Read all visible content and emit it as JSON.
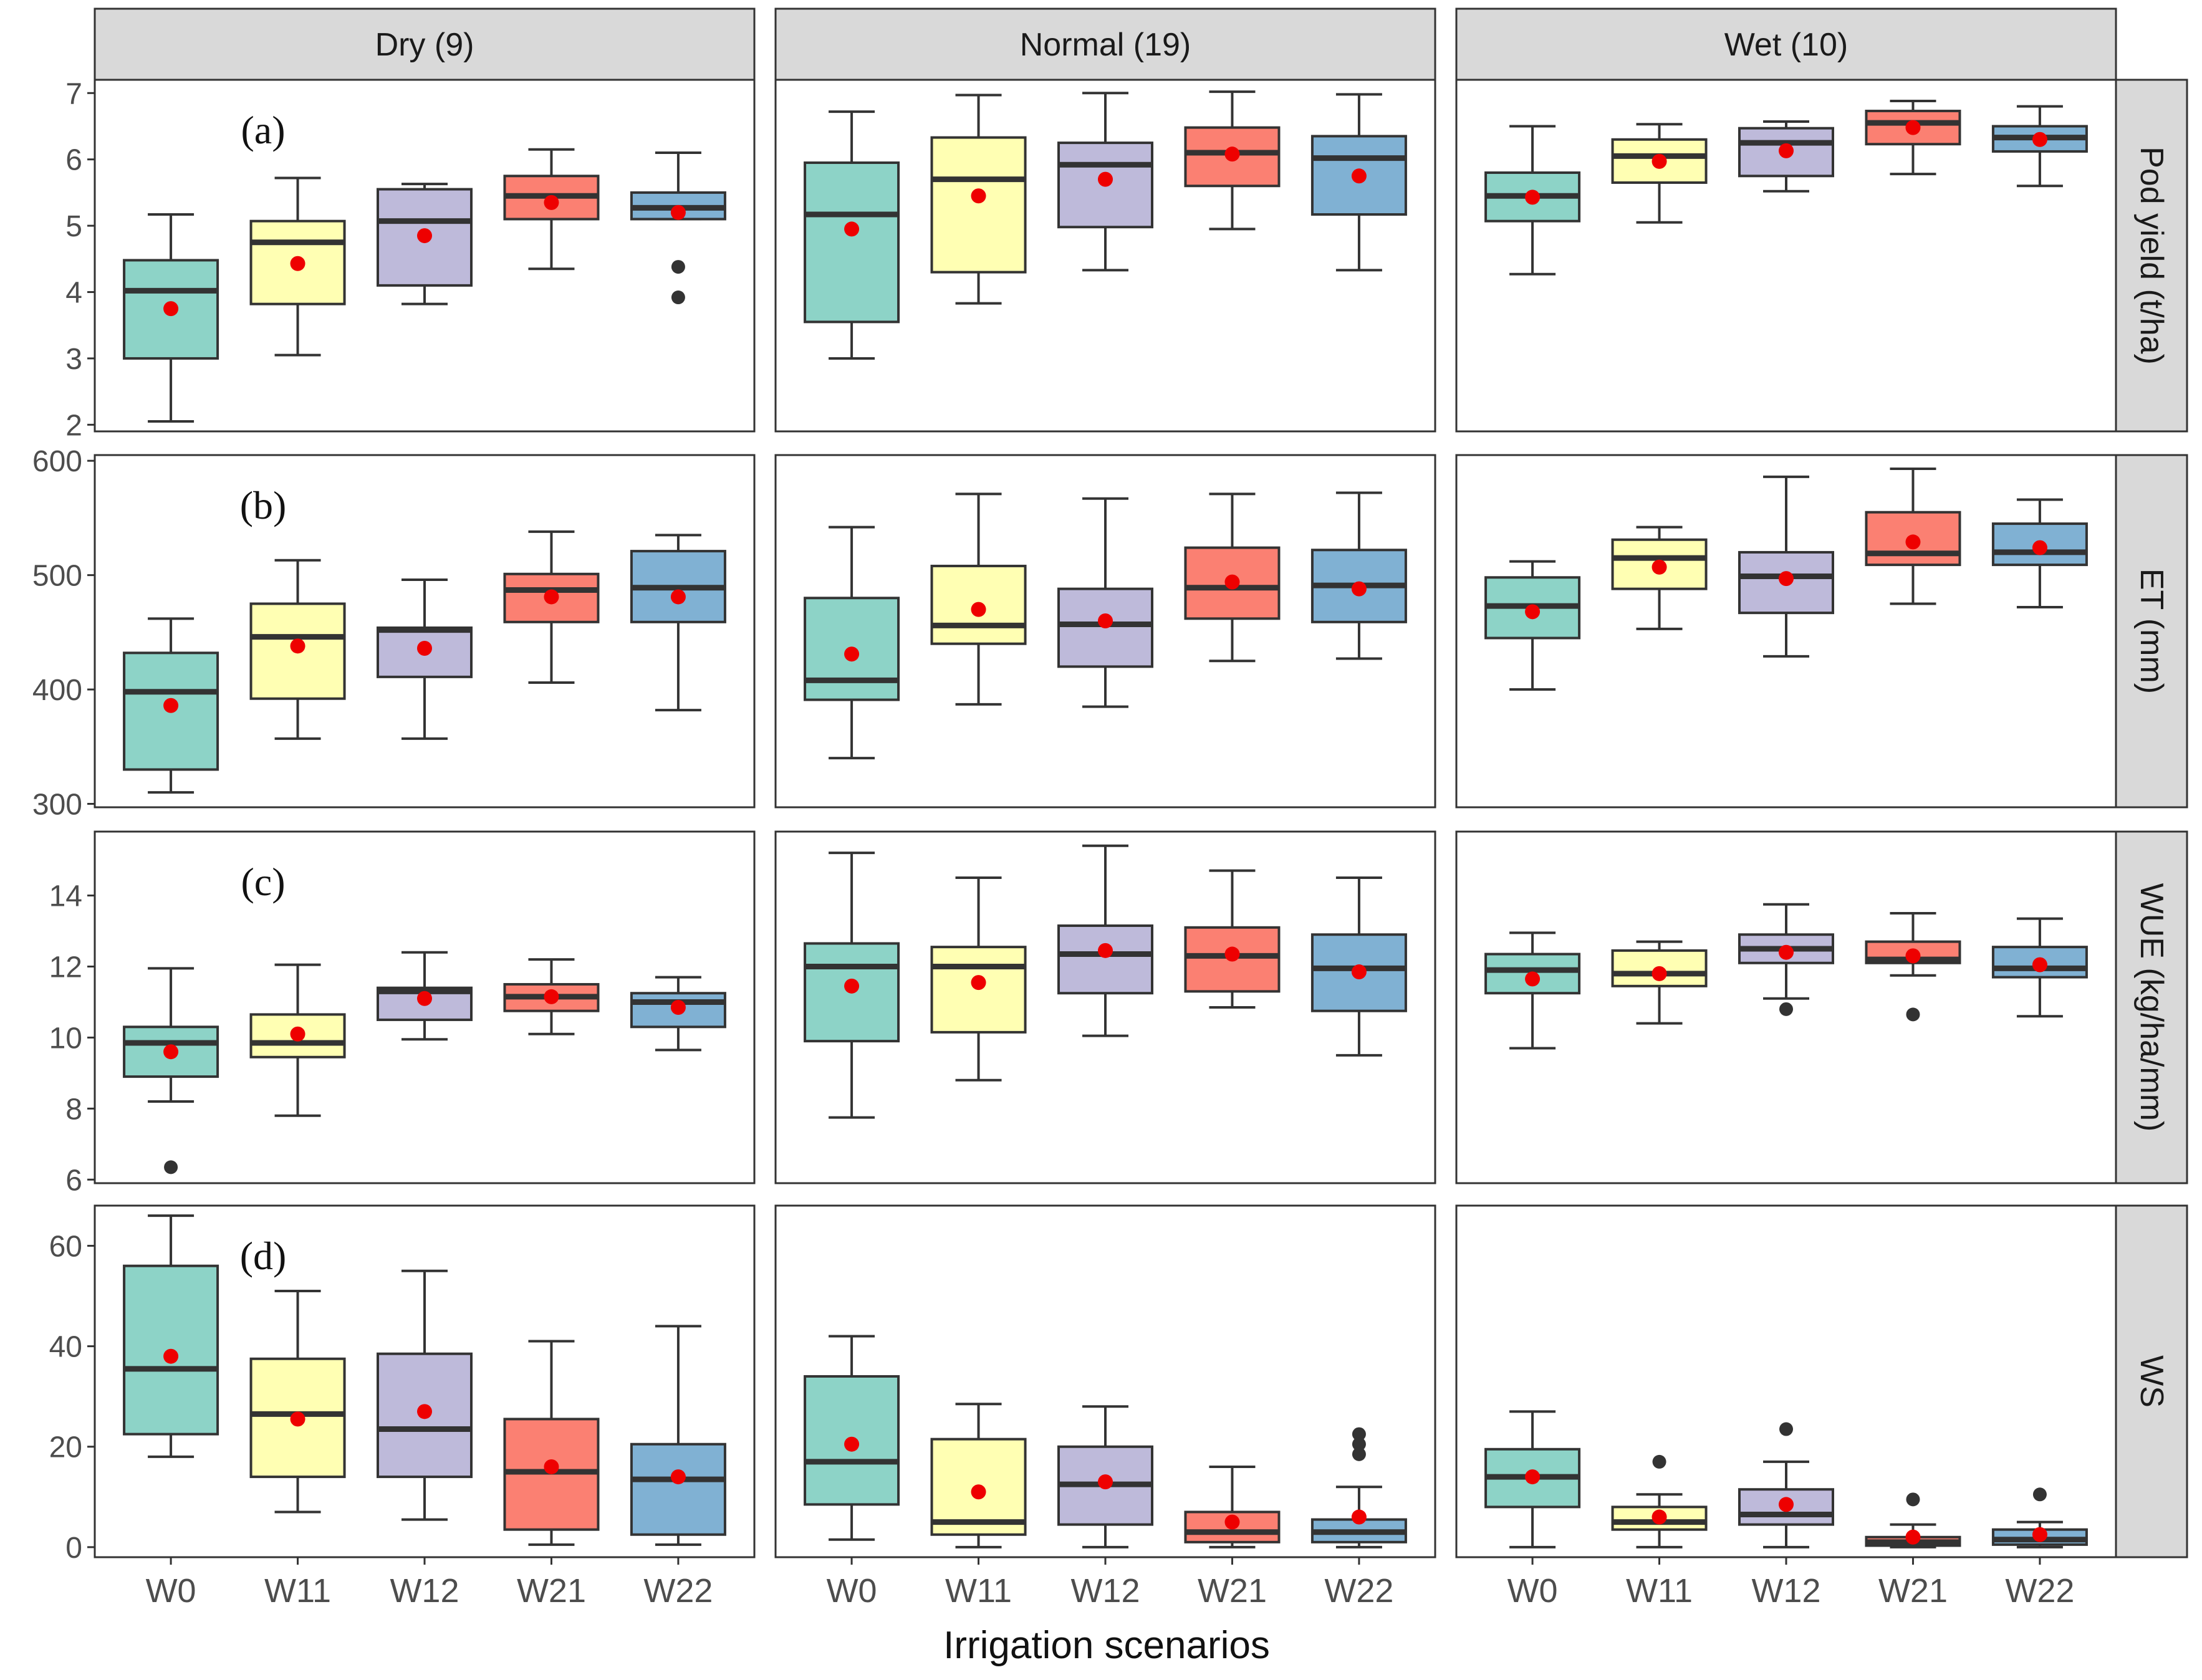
{
  "chart_data": {
    "type": "box",
    "title": "",
    "xlabel": "Irrigation scenarios",
    "categories": [
      "W0",
      "W11",
      "W12",
      "W21",
      "W22"
    ],
    "series_colors": [
      "#8dd3c7",
      "#ffffb3",
      "#bebada",
      "#fb8072",
      "#80b1d3"
    ],
    "mean_color": "#ee0000",
    "columns": [
      "Dry (9)",
      "Normal (19)",
      "Wet (10)"
    ],
    "rows": [
      {
        "strip": "Pod yield (t/ha)",
        "panel_label": "(a)",
        "ylim": [
          1.9,
          7.2
        ],
        "ticks": [
          2,
          3,
          4,
          5,
          6,
          7
        ],
        "panels": [
          [
            {
              "min": 2.05,
              "q1": 3.0,
              "median": 4.02,
              "q3": 4.48,
              "max": 5.17,
              "mean": 3.75,
              "outliers": []
            },
            {
              "min": 3.05,
              "q1": 3.82,
              "median": 4.75,
              "q3": 5.07,
              "max": 5.72,
              "mean": 4.43,
              "outliers": []
            },
            {
              "min": 3.82,
              "q1": 4.1,
              "median": 5.07,
              "q3": 5.55,
              "max": 5.63,
              "mean": 4.85,
              "outliers": []
            },
            {
              "min": 4.35,
              "q1": 5.1,
              "median": 5.45,
              "q3": 5.75,
              "max": 6.15,
              "mean": 5.35,
              "outliers": []
            },
            {
              "min": 5.1,
              "q1": 5.1,
              "median": 5.27,
              "q3": 5.5,
              "max": 6.1,
              "mean": 5.2,
              "outliers": [
                4.38,
                3.92
              ]
            }
          ],
          [
            {
              "min": 3.0,
              "q1": 3.55,
              "median": 5.17,
              "q3": 5.95,
              "max": 6.72,
              "mean": 4.95,
              "outliers": []
            },
            {
              "min": 3.83,
              "q1": 4.3,
              "median": 5.7,
              "q3": 6.33,
              "max": 6.97,
              "mean": 5.45,
              "outliers": []
            },
            {
              "min": 4.33,
              "q1": 4.98,
              "median": 5.92,
              "q3": 6.25,
              "max": 7.0,
              "mean": 5.7,
              "outliers": []
            },
            {
              "min": 4.95,
              "q1": 5.6,
              "median": 6.1,
              "q3": 6.48,
              "max": 7.02,
              "mean": 6.08,
              "outliers": []
            },
            {
              "min": 4.33,
              "q1": 5.17,
              "median": 6.02,
              "q3": 6.35,
              "max": 6.98,
              "mean": 5.75,
              "outliers": []
            }
          ],
          [
            {
              "min": 4.27,
              "q1": 5.07,
              "median": 5.45,
              "q3": 5.8,
              "max": 6.5,
              "mean": 5.43,
              "outliers": []
            },
            {
              "min": 5.05,
              "q1": 5.65,
              "median": 6.05,
              "q3": 6.3,
              "max": 6.53,
              "mean": 5.97,
              "outliers": []
            },
            {
              "min": 5.52,
              "q1": 5.75,
              "median": 6.25,
              "q3": 6.47,
              "max": 6.57,
              "mean": 6.13,
              "outliers": []
            },
            {
              "min": 5.78,
              "q1": 6.23,
              "median": 6.55,
              "q3": 6.73,
              "max": 6.88,
              "mean": 6.48,
              "outliers": []
            },
            {
              "min": 5.6,
              "q1": 6.12,
              "median": 6.33,
              "q3": 6.5,
              "max": 6.8,
              "mean": 6.3,
              "outliers": []
            }
          ]
        ]
      },
      {
        "strip": "ET (mm)",
        "panel_label": "(b)",
        "ylim": [
          297,
          605
        ],
        "ticks": [
          300,
          400,
          500,
          600
        ],
        "panels": [
          [
            {
              "min": 310,
              "q1": 330,
              "median": 398,
              "q3": 432,
              "max": 462,
              "mean": 386,
              "outliers": []
            },
            {
              "min": 357,
              "q1": 392,
              "median": 446,
              "q3": 475,
              "max": 513,
              "mean": 438,
              "outliers": []
            },
            {
              "min": 357,
              "q1": 411,
              "median": 452,
              "q3": 454,
              "max": 496,
              "mean": 436,
              "outliers": []
            },
            {
              "min": 406,
              "q1": 459,
              "median": 487,
              "q3": 501,
              "max": 538,
              "mean": 481,
              "outliers": []
            },
            {
              "min": 382,
              "q1": 459,
              "median": 489,
              "q3": 521,
              "max": 535,
              "mean": 481,
              "outliers": []
            }
          ],
          [
            {
              "min": 340,
              "q1": 391,
              "median": 408,
              "q3": 480,
              "max": 542,
              "mean": 431,
              "outliers": []
            },
            {
              "min": 387,
              "q1": 440,
              "median": 456,
              "q3": 508,
              "max": 571,
              "mean": 470,
              "outliers": []
            },
            {
              "min": 385,
              "q1": 420,
              "median": 457,
              "q3": 488,
              "max": 567,
              "mean": 460,
              "outliers": []
            },
            {
              "min": 425,
              "q1": 462,
              "median": 489,
              "q3": 524,
              "max": 571,
              "mean": 494,
              "outliers": []
            },
            {
              "min": 427,
              "q1": 459,
              "median": 491,
              "q3": 522,
              "max": 572,
              "mean": 488,
              "outliers": []
            }
          ],
          [
            {
              "min": 400,
              "q1": 445,
              "median": 473,
              "q3": 498,
              "max": 512,
              "mean": 468,
              "outliers": []
            },
            {
              "min": 453,
              "q1": 488,
              "median": 515,
              "q3": 531,
              "max": 542,
              "mean": 507,
              "outliers": []
            },
            {
              "min": 429,
              "q1": 467,
              "median": 499,
              "q3": 520,
              "max": 586,
              "mean": 497,
              "outliers": []
            },
            {
              "min": 475,
              "q1": 509,
              "median": 519,
              "q3": 555,
              "max": 593,
              "mean": 529,
              "outliers": []
            },
            {
              "min": 472,
              "q1": 509,
              "median": 520,
              "q3": 545,
              "max": 566,
              "mean": 524,
              "outliers": []
            }
          ]
        ]
      },
      {
        "strip": "WUE (kg/ha/mm)",
        "panel_label": "(c)",
        "ylim": [
          5.9,
          15.8
        ],
        "ticks": [
          6,
          8,
          10,
          12,
          14
        ],
        "panels": [
          [
            {
              "min": 8.2,
              "q1": 8.9,
              "median": 9.85,
              "q3": 10.3,
              "max": 11.95,
              "mean": 9.6,
              "outliers": [
                6.35
              ]
            },
            {
              "min": 7.8,
              "q1": 9.45,
              "median": 9.85,
              "q3": 10.65,
              "max": 12.05,
              "mean": 10.1,
              "outliers": []
            },
            {
              "min": 9.95,
              "q1": 10.5,
              "median": 11.3,
              "q3": 11.4,
              "max": 12.4,
              "mean": 11.1,
              "outliers": []
            },
            {
              "min": 10.1,
              "q1": 10.75,
              "median": 11.15,
              "q3": 11.5,
              "max": 12.2,
              "mean": 11.15,
              "outliers": []
            },
            {
              "min": 9.65,
              "q1": 10.3,
              "median": 11.0,
              "q3": 11.25,
              "max": 11.7,
              "mean": 10.85,
              "outliers": []
            }
          ],
          [
            {
              "min": 7.75,
              "q1": 9.9,
              "median": 12.0,
              "q3": 12.65,
              "max": 15.2,
              "mean": 11.45,
              "outliers": []
            },
            {
              "min": 8.8,
              "q1": 10.15,
              "median": 12.0,
              "q3": 12.55,
              "max": 14.5,
              "mean": 11.55,
              "outliers": []
            },
            {
              "min": 10.05,
              "q1": 11.25,
              "median": 12.35,
              "q3": 13.15,
              "max": 15.4,
              "mean": 12.45,
              "outliers": []
            },
            {
              "min": 10.85,
              "q1": 11.3,
              "median": 12.3,
              "q3": 13.1,
              "max": 14.7,
              "mean": 12.35,
              "outliers": []
            },
            {
              "min": 9.5,
              "q1": 10.75,
              "median": 11.95,
              "q3": 12.9,
              "max": 14.5,
              "mean": 11.85,
              "outliers": []
            }
          ],
          [
            {
              "min": 9.7,
              "q1": 11.25,
              "median": 11.9,
              "q3": 12.35,
              "max": 12.95,
              "mean": 11.65,
              "outliers": []
            },
            {
              "min": 10.4,
              "q1": 11.45,
              "median": 11.8,
              "q3": 12.45,
              "max": 12.7,
              "mean": 11.8,
              "outliers": []
            },
            {
              "min": 11.1,
              "q1": 12.1,
              "median": 12.5,
              "q3": 12.9,
              "max": 13.75,
              "mean": 12.4,
              "outliers": [
                10.8
              ]
            },
            {
              "min": 11.75,
              "q1": 12.1,
              "median": 12.2,
              "q3": 12.7,
              "max": 13.5,
              "mean": 12.3,
              "outliers": [
                10.65
              ]
            },
            {
              "min": 10.6,
              "q1": 11.7,
              "median": 11.95,
              "q3": 12.55,
              "max": 13.35,
              "mean": 12.05,
              "outliers": []
            }
          ]
        ]
      },
      {
        "strip": "WS",
        "panel_label": "(d)",
        "ylim": [
          -2,
          68
        ],
        "ticks": [
          0,
          20,
          40,
          60
        ],
        "panels": [
          [
            {
              "min": 18,
              "q1": 22.5,
              "median": 35.5,
              "q3": 56,
              "max": 66,
              "mean": 38,
              "outliers": []
            },
            {
              "min": 7,
              "q1": 14,
              "median": 26.5,
              "q3": 37.5,
              "max": 51,
              "mean": 25.5,
              "outliers": []
            },
            {
              "min": 5.5,
              "q1": 14,
              "median": 23.5,
              "q3": 38.5,
              "max": 55,
              "mean": 27,
              "outliers": []
            },
            {
              "min": 0.5,
              "q1": 3.5,
              "median": 15,
              "q3": 25.5,
              "max": 41,
              "mean": 16,
              "outliers": []
            },
            {
              "min": 0.5,
              "q1": 2.5,
              "median": 13.5,
              "q3": 20.5,
              "max": 44,
              "mean": 14,
              "outliers": []
            }
          ],
          [
            {
              "min": 1.5,
              "q1": 8.5,
              "median": 17,
              "q3": 34,
              "max": 42,
              "mean": 20.5,
              "outliers": []
            },
            {
              "min": 0,
              "q1": 2.5,
              "median": 5,
              "q3": 21.5,
              "max": 28.5,
              "mean": 11,
              "outliers": []
            },
            {
              "min": 0,
              "q1": 4.5,
              "median": 12.5,
              "q3": 20,
              "max": 28,
              "mean": 13,
              "outliers": []
            },
            {
              "min": 0,
              "q1": 1,
              "median": 3,
              "q3": 7,
              "max": 16,
              "mean": 5,
              "outliers": []
            },
            {
              "min": 0,
              "q1": 1,
              "median": 3,
              "q3": 5.5,
              "max": 12,
              "mean": 6,
              "outliers": [
                22.5,
                20.5,
                18.5
              ]
            }
          ],
          [
            {
              "min": 0,
              "q1": 8,
              "median": 14,
              "q3": 19.5,
              "max": 27,
              "mean": 14,
              "outliers": []
            },
            {
              "min": 0,
              "q1": 3.5,
              "median": 5,
              "q3": 8,
              "max": 10.5,
              "mean": 6,
              "outliers": [
                17
              ]
            },
            {
              "min": 0,
              "q1": 4.5,
              "median": 6.5,
              "q3": 11.5,
              "max": 17,
              "mean": 8.5,
              "outliers": [
                23.5
              ]
            },
            {
              "min": 0,
              "q1": 0.3,
              "median": 1,
              "q3": 2,
              "max": 4.5,
              "mean": 2,
              "outliers": [
                9.5
              ]
            },
            {
              "min": 0,
              "q1": 0.5,
              "median": 1.5,
              "q3": 3.5,
              "max": 5,
              "mean": 2.5,
              "outliers": [
                10.5
              ]
            }
          ]
        ]
      }
    ]
  }
}
